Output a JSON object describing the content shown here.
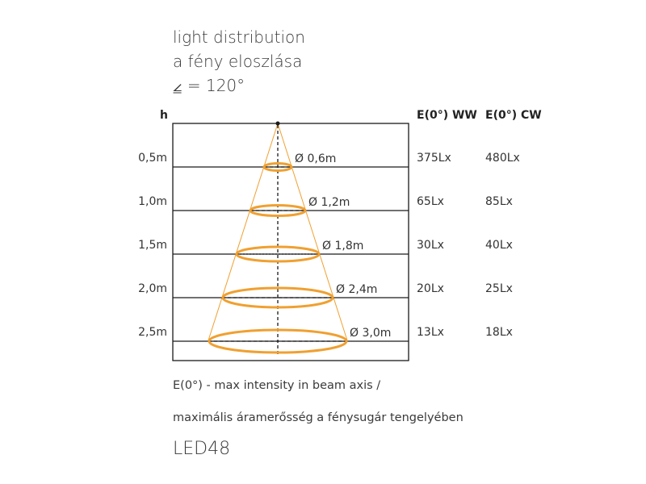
{
  "title": {
    "line1": "light distribution",
    "line2": "a fény eloszlása",
    "line3": "⦤ = 120°"
  },
  "headers": {
    "h": "h",
    "ww": "E(0°) WW",
    "cw": "E(0°) CW"
  },
  "rows": [
    {
      "height": "0,5m",
      "diameter": "Ø 0,6m",
      "ww": "375Lx",
      "cw": "480Lx"
    },
    {
      "height": "1,0m",
      "diameter": "Ø 1,2m",
      "ww": "65Lx",
      "cw": "85Lx"
    },
    {
      "height": "1,5m",
      "diameter": "Ø 1,8m",
      "ww": "30Lx",
      "cw": "40Lx"
    },
    {
      "height": "2,0m",
      "diameter": "Ø 2,4m",
      "ww": "20Lx",
      "cw": "25Lx"
    },
    {
      "height": "2,5m",
      "diameter": "Ø 3,0m",
      "ww": "13Lx",
      "cw": "18Lx"
    }
  ],
  "footer": {
    "line1": "E(0°) - max intensity in beam axis /",
    "line2": "maximális áramerősség a fénysugár tengelyében"
  },
  "model": "LED48",
  "colors": {
    "beam": "#f0a030",
    "ellipse": "#f0a030",
    "lines": "#1a1a1a"
  }
}
